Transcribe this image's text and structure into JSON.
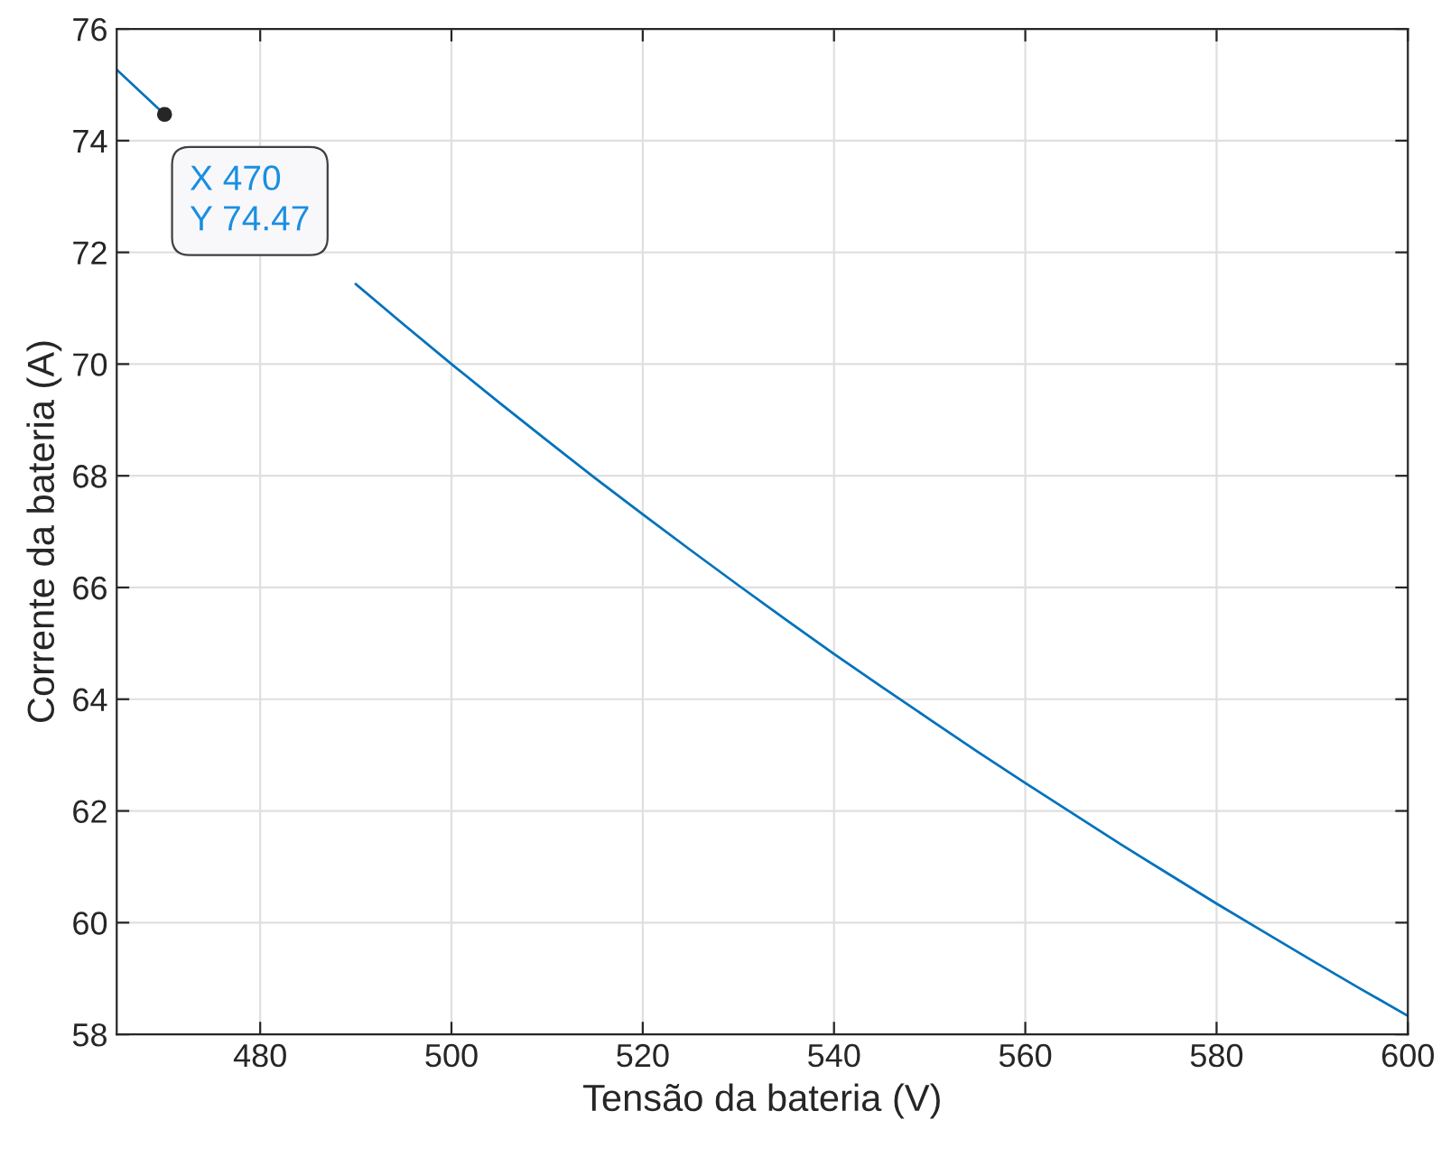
{
  "chart_data": {
    "type": "line",
    "xlabel": "Tensão da bateria (V)",
    "ylabel": "Corrente da bateria (A)",
    "x": [
      465,
      470,
      475,
      480,
      485,
      490,
      495,
      500,
      505,
      510,
      515,
      520,
      525,
      530,
      535,
      540,
      545,
      550,
      555,
      560,
      565,
      570,
      575,
      580,
      585,
      590,
      595,
      600
    ],
    "series": [
      {
        "color": "#0072bd",
        "values": [
          75.27,
          74.47,
          null,
          null,
          null,
          71.43,
          70.71,
          70.0,
          69.31,
          68.63,
          67.96,
          67.31,
          66.67,
          66.04,
          65.42,
          64.81,
          64.22,
          63.64,
          63.06,
          62.5,
          61.95,
          61.4,
          60.87,
          60.34,
          59.83,
          59.32,
          58.82,
          58.33
        ]
      }
    ],
    "xlim": [
      465,
      600
    ],
    "xticks": [
      480,
      500,
      520,
      540,
      560,
      580,
      600
    ],
    "ylim": [
      58,
      76
    ],
    "yticks": [
      58,
      60,
      62,
      64,
      66,
      68,
      70,
      72,
      74,
      76
    ],
    "grid": true,
    "marker": "none",
    "line_style": "solid",
    "annotations": [
      {
        "text": "X 470\nY 74.47",
        "x": 470,
        "y": 74.47
      }
    ]
  }
}
